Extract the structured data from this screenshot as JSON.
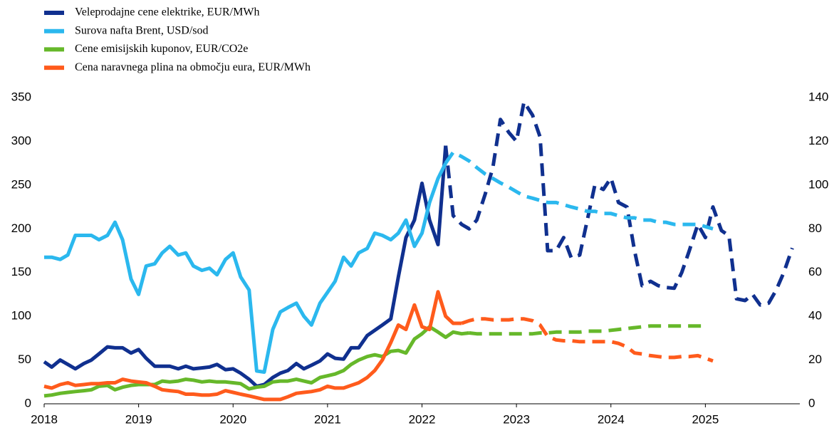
{
  "chart_data": {
    "type": "line",
    "x": [
      2018,
      2018.08,
      2018.17,
      2018.25,
      2018.33,
      2018.42,
      2018.5,
      2018.58,
      2018.67,
      2018.75,
      2018.83,
      2018.92,
      2019,
      2019.08,
      2019.17,
      2019.25,
      2019.33,
      2019.42,
      2019.5,
      2019.58,
      2019.67,
      2019.75,
      2019.83,
      2019.92,
      2020,
      2020.08,
      2020.17,
      2020.25,
      2020.33,
      2020.42,
      2020.5,
      2020.58,
      2020.67,
      2020.75,
      2020.83,
      2020.92,
      2021,
      2021.08,
      2021.17,
      2021.25,
      2021.33,
      2021.42,
      2021.5,
      2021.58,
      2021.67,
      2021.75,
      2021.83,
      2021.92,
      2022,
      2022.08,
      2022.17,
      2022.25,
      2022.33,
      2022.42,
      2022.5,
      2022.58,
      2022.67,
      2022.75,
      2022.83,
      2022.92,
      2023,
      2023.08,
      2023.17,
      2023.25,
      2023.33,
      2023.42,
      2023.5,
      2023.58,
      2023.67,
      2023.75,
      2023.83,
      2023.92,
      2024,
      2024.08,
      2024.17,
      2024.25,
      2024.33,
      2024.42,
      2024.5,
      2024.58,
      2024.67,
      2024.75,
      2024.83,
      2024.92,
      2025,
      2025.08,
      2025.17,
      2025.25,
      2025.33,
      2025.42,
      2025.5,
      2025.58,
      2025.67,
      2025.75,
      2025.83,
      2025.92
    ],
    "series": [
      {
        "name": "Veleprodajne cene elektrike, EUR/MWh",
        "color": "#10308f",
        "axis": "y",
        "dash_from": 2022.25,
        "values": [
          48,
          42,
          50,
          45,
          40,
          46,
          50,
          57,
          65,
          64,
          64,
          58,
          62,
          52,
          43,
          43,
          43,
          40,
          43,
          40,
          41,
          42,
          45,
          39,
          40,
          35,
          28,
          20,
          22,
          30,
          35,
          38,
          46,
          40,
          44,
          49,
          57,
          52,
          51,
          64,
          64,
          78,
          84,
          90,
          97,
          145,
          190,
          210,
          252,
          210,
          182,
          295,
          215,
          205,
          200,
          210,
          240,
          270,
          325,
          310,
          300,
          345,
          330,
          305,
          175,
          175,
          190,
          167,
          170,
          210,
          250,
          245,
          258,
          230,
          225,
          175,
          135,
          140,
          135,
          133,
          132,
          150,
          175,
          205,
          190,
          225,
          198,
          192,
          120,
          118,
          125,
          113,
          115,
          130,
          150,
          178
        ]
      },
      {
        "name": "Surova nafta Brent, USD/sod",
        "color": "#2bb8ee",
        "axis": "y2",
        "dash_from": 2022.25,
        "values": [
          67,
          67,
          66,
          68,
          77,
          77,
          77,
          75,
          77,
          83,
          75,
          57,
          50,
          63,
          64,
          69,
          72,
          68,
          69,
          63,
          61,
          62,
          59,
          66,
          69,
          58,
          52,
          15,
          14.5,
          34,
          42,
          44,
          46,
          40,
          36,
          46,
          51,
          56,
          67,
          63,
          69,
          71,
          78,
          77,
          75,
          78,
          84,
          72,
          78,
          92,
          103,
          110,
          115,
          113,
          111,
          108,
          105,
          103,
          101,
          99,
          97,
          95,
          94,
          93,
          92,
          92,
          91,
          90,
          89,
          88,
          88,
          87,
          87,
          86,
          85,
          85,
          84,
          84,
          83,
          83,
          82,
          82,
          82,
          82,
          81,
          80,
          null,
          null,
          null,
          null,
          null,
          null,
          null,
          null,
          null,
          null
        ]
      },
      {
        "name": "Cene emisijskih kuponov, EUR/CO2e",
        "color": "#66b82a",
        "axis": "y",
        "dash_from": 2022.5,
        "values": [
          9,
          10,
          12,
          13,
          14,
          15,
          16,
          20,
          21,
          16,
          19,
          21,
          22,
          22,
          22,
          26,
          25,
          26,
          28,
          27,
          25,
          26,
          25,
          25,
          24,
          23,
          17,
          19,
          20,
          25,
          26,
          26,
          28,
          26,
          24,
          30,
          32,
          34,
          38,
          45,
          50,
          54,
          56,
          54,
          60,
          61,
          58,
          74,
          80,
          88,
          82,
          76,
          82,
          80,
          81,
          80,
          80,
          80,
          80,
          80,
          80,
          80,
          80,
          81,
          81,
          82,
          82,
          82,
          82,
          83,
          83,
          83,
          84,
          85,
          86,
          87,
          88,
          89,
          89,
          89,
          89,
          89,
          89,
          89,
          89,
          null,
          null,
          null,
          null,
          null,
          null,
          null,
          null,
          null,
          null,
          null
        ]
      },
      {
        "name": "Cena naravnega plina na območju eura, EUR/MWh",
        "color": "#ff5b1c",
        "axis": "y",
        "dash_from": 2022.42,
        "values": [
          20,
          18,
          22,
          24,
          21,
          22,
          23,
          23,
          24,
          24,
          28,
          26,
          25,
          24,
          20,
          16,
          15,
          14,
          11,
          11,
          10,
          10,
          11,
          15,
          13,
          11,
          9,
          7,
          5,
          5,
          5,
          8,
          12,
          13,
          14,
          16,
          20,
          18,
          18,
          21,
          24,
          30,
          38,
          50,
          70,
          90,
          85,
          113,
          88,
          85,
          128,
          100,
          92,
          92,
          95,
          97,
          97,
          96,
          96,
          96,
          97,
          97,
          95,
          90,
          77,
          73,
          72,
          72,
          71,
          71,
          71,
          71,
          71,
          69,
          65,
          58,
          57,
          55,
          54,
          53,
          53,
          54,
          54,
          55,
          52,
          49,
          null,
          null,
          null,
          null,
          null,
          null,
          null,
          null,
          null,
          null
        ]
      }
    ],
    "xlim": [
      2018,
      2026
    ],
    "xticks": [
      2018,
      2019,
      2020,
      2021,
      2022,
      2023,
      2024,
      2025
    ],
    "ylim": [
      0,
      350
    ],
    "yticks": [
      0,
      50,
      100,
      150,
      200,
      250,
      300,
      350
    ],
    "y2lim": [
      0,
      140
    ],
    "y2ticks": [
      0,
      20,
      40,
      60,
      80,
      100,
      120,
      140
    ],
    "legend": "top-left",
    "grid": false
  }
}
